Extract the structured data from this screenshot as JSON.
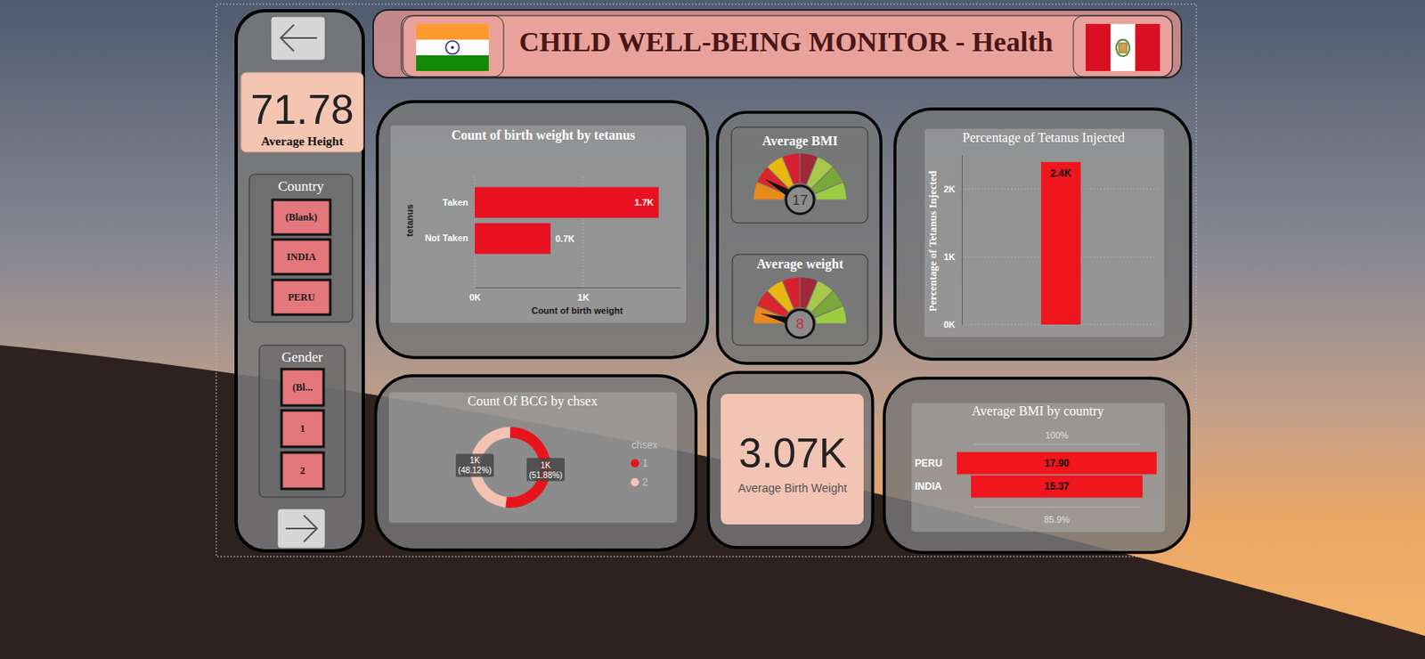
{
  "header": {
    "title": "CHILD WELL-BEING MONITOR - Health"
  },
  "cards": [
    {
      "value": 71.78,
      "label": "Average Height"
    },
    {
      "value": "3.07K",
      "label": "Average Birth Weight"
    }
  ],
  "slicers": [
    {
      "title": "Country",
      "items": [
        "(Blank)",
        "INDIA",
        "PERU"
      ]
    },
    {
      "title": "Gender",
      "items": [
        "(Bl...",
        "1",
        "2"
      ]
    }
  ],
  "chart_data": [
    {
      "type": "bar",
      "title": "Count of birth weight by tetanus",
      "orientation": "horizontal",
      "categories": [
        "Taken",
        "Not Taken"
      ],
      "values": [
        1700,
        700
      ],
      "value_labels": [
        "1.7K",
        "0.7K"
      ],
      "data_labels": true,
      "xlabel": "Count of birth weight",
      "ylabel": "tetanus",
      "xlim": [
        0,
        1900
      ],
      "xticks": [
        {
          "value": 0,
          "label": "0K"
        },
        {
          "value": 1000,
          "label": "1K"
        }
      ],
      "color": "#e8111f",
      "grid": true
    },
    {
      "type": "gauge",
      "title": "Average BMI",
      "value": 17,
      "range": [
        0,
        100
      ]
    },
    {
      "type": "gauge",
      "title": "Average weight",
      "value": 8,
      "range": [
        0,
        100
      ]
    },
    {
      "type": "bar",
      "title": "Percentage of Tetanus Injected",
      "categories": [
        null
      ],
      "values": [
        2400
      ],
      "value_labels": [
        "2.4K"
      ],
      "data_labels": true,
      "ylabel": "Percentage of Tetanus Injected",
      "ylim": [
        0,
        2500
      ],
      "yticks": [
        {
          "value": 0,
          "label": "0K"
        },
        {
          "value": 1000,
          "label": "1K"
        },
        {
          "value": 2000,
          "label": "2K"
        }
      ],
      "color": "#f0161e",
      "grid": true
    },
    {
      "type": "donut",
      "title": "Count Of BCG by chsex",
      "categories": [
        "1",
        "2"
      ],
      "values": [
        1038,
        963
      ],
      "value_labels": [
        "1K",
        "1K"
      ],
      "percent_labels": [
        "(51.88%)",
        "(48.12%)"
      ],
      "colors": [
        "#e8141c",
        "#f4c2b2"
      ],
      "legend": "right",
      "legend_title": "chsex",
      "data_labels": true
    },
    {
      "type": "funnel",
      "title": "Average BMI by country",
      "categories": [
        "PERU",
        "INDIA"
      ],
      "values": [
        17.9,
        15.37
      ],
      "value_labels": [
        "17.90",
        "15.37"
      ],
      "annotations": [
        "100%",
        "85.9%"
      ],
      "xlim": [
        0,
        17.9
      ],
      "color": "#f0161e",
      "data_labels": true
    }
  ]
}
